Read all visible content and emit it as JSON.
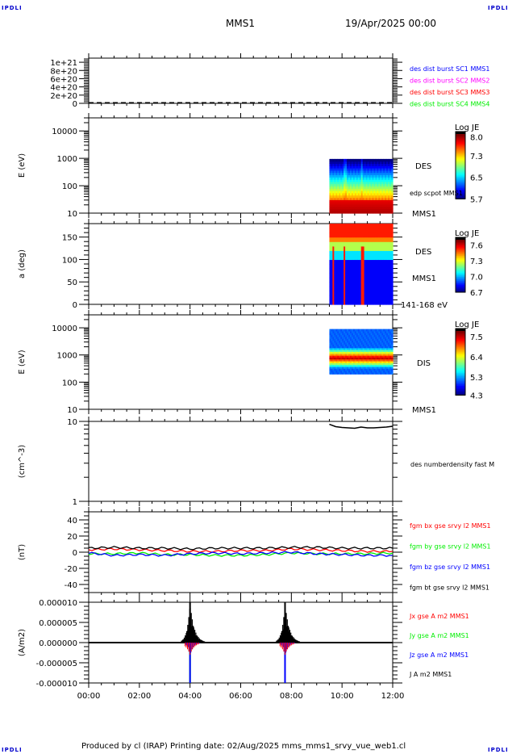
{
  "header": {
    "corner_label": "IPDLI",
    "spacecraft": "MMS1",
    "datetime": "19/Apr/2025 00:00"
  },
  "footer": {
    "text": "Produced by cl (IRAP)   Printing date: 02/Aug/2025   mms_mms1_srvy_vue_web1.cl"
  },
  "colors": {
    "red": "#ff0000",
    "green": "#00ee00",
    "blue": "#0000ff",
    "magenta": "#ff00ff",
    "black": "#000000",
    "corner": "#0000cc"
  },
  "chart_data": [
    {
      "id": "burst-flags",
      "type": "line",
      "ylabel": "",
      "ylim": [
        0,
        1.1e+21
      ],
      "yticks": [
        0,
        2e+20,
        4e+20,
        6e+20,
        8e+20,
        1e+21
      ],
      "ytick_labels": [
        "0",
        "2e+20",
        "4e+20",
        "6e+20",
        "8e+20",
        "1e+21"
      ],
      "series": [
        {
          "name": "des dist burst SC1 MMS1",
          "color": "#0000ff",
          "values": []
        },
        {
          "name": "des dist burst SC2 MMS2",
          "color": "#ff00ff",
          "values": []
        },
        {
          "name": "des dist burst SC3 MMS3",
          "color": "#ff0000",
          "values": []
        },
        {
          "name": "des dist burst SC4 MMS4",
          "color": "#00ee00",
          "values": []
        }
      ],
      "annotations": [
        "dashed zero line"
      ]
    },
    {
      "id": "des-energy-spectrogram",
      "type": "heatmap",
      "ylabel": "E (eV)",
      "yscale": "log",
      "ylim": [
        10,
        30000
      ],
      "ytick_labels": [
        "10",
        "100",
        "1000",
        "10000"
      ],
      "data_time_range": [
        "09:30",
        "12:00"
      ],
      "data_energy_range_eV": [
        10,
        950
      ],
      "description": "Red (high flux) below ~100 eV, fading through yellow/green to blue near 900 eV; brief enhancements near 10:05 and 10:45",
      "colorbar": {
        "label": "Log JE",
        "ticks": [
          "5.7",
          "6.5",
          "7.3",
          "8.0"
        ],
        "range": [
          5.7,
          8.1
        ]
      },
      "side_labels": [
        "DES",
        "edp scpot MMS1",
        "MMS1"
      ]
    },
    {
      "id": "des-pitch-angle",
      "type": "heatmap",
      "ylabel": "a (deg)",
      "ylim": [
        0,
        180
      ],
      "ytick_labels": [
        "0",
        "50",
        "100",
        "150"
      ],
      "data_time_range": [
        "09:30",
        "12:00"
      ],
      "description": "High flux (red/orange) at 140-180 deg, blue at low pitch angles with red/orange vertical streaks near 09:40, 10:05 and 10:45",
      "colorbar": {
        "label": "Log JE",
        "ticks": [
          "6.7",
          "7.0",
          "7.3",
          "7.6"
        ],
        "range": [
          6.7,
          7.7
        ]
      },
      "side_labels": [
        "DES",
        "MMS1",
        "141-168 eV"
      ]
    },
    {
      "id": "dis-energy-spectrogram",
      "type": "heatmap",
      "ylabel": "E (eV)",
      "yscale": "log",
      "ylim": [
        10,
        30000
      ],
      "ytick_labels": [
        "10",
        "100",
        "1000",
        "10000"
      ],
      "data_time_range": [
        "09:30",
        "12:00"
      ],
      "data_energy_range_eV": [
        200,
        9000
      ],
      "description": "Narrow red band near 800 eV surrounded by yellow/green, blue elsewhere",
      "colorbar": {
        "label": "Log JE",
        "ticks": [
          "4.3",
          "5.3",
          "6.4",
          "7.5"
        ],
        "range": [
          4.3,
          7.8
        ]
      },
      "side_labels": [
        "DIS",
        "MMS1"
      ]
    },
    {
      "id": "des-number-density",
      "type": "line",
      "ylabel": "(cm^-3)",
      "yscale": "log",
      "ylim": [
        1,
        10
      ],
      "ytick_labels": [
        "1",
        "10"
      ],
      "x": [
        "09:30",
        "09:45",
        "10:00",
        "10:15",
        "10:30",
        "10:45",
        "11:00",
        "11:15",
        "11:30",
        "11:45",
        "12:00"
      ],
      "series": [
        {
          "name": "des numberdensity fast M",
          "color": "#000000",
          "values": [
            9.2,
            8.6,
            8.4,
            8.3,
            8.2,
            8.5,
            8.3,
            8.3,
            8.4,
            8.5,
            8.7
          ]
        }
      ]
    },
    {
      "id": "fgm-b-field",
      "type": "line",
      "ylabel": "(nT)",
      "ylim": [
        -50,
        50
      ],
      "ytick_labels": [
        "-40",
        "-20",
        "0",
        "20",
        "40"
      ],
      "x": [
        "00:00",
        "01:00",
        "02:00",
        "03:00",
        "04:00",
        "05:00",
        "06:00",
        "07:00",
        "08:00",
        "09:00",
        "10:00",
        "11:00",
        "12:00"
      ],
      "series": [
        {
          "name": "fgm bx gse srvy l2 MMS1",
          "color": "#ff0000",
          "values": [
            3,
            4,
            3,
            2,
            1,
            1,
            2,
            2,
            4,
            3,
            2,
            1,
            1
          ]
        },
        {
          "name": "fgm by gse srvy l2 MMS1",
          "color": "#00ee00",
          "values": [
            -2,
            -2,
            -1,
            -3,
            -3,
            -4,
            -4,
            -3,
            -1,
            -2,
            -2,
            -2,
            -1
          ]
        },
        {
          "name": "fgm bz gse srvy l2 MMS1",
          "color": "#0000ff",
          "values": [
            -1,
            -4,
            -3,
            -4,
            -2,
            -1,
            -2,
            -1,
            0,
            -2,
            -3,
            -4,
            -4
          ]
        },
        {
          "name": "fgm bt gse srvy l2 MMS1",
          "color": "#000000",
          "values": [
            5,
            6,
            5,
            5,
            4,
            5,
            5,
            5,
            6,
            6,
            5,
            5,
            5
          ]
        }
      ]
    },
    {
      "id": "current-density",
      "type": "line",
      "ylabel": "(A/m2)",
      "ylim": [
        -1e-05,
        1e-05
      ],
      "ytick_labels": [
        "-0.000010",
        "-0.000005",
        "0.000000",
        "0.000005",
        "0.000010"
      ],
      "xlabel": "",
      "xtick_labels": [
        "00:00",
        "02:00",
        "04:00",
        "06:00",
        "08:00",
        "10:00",
        "12:00"
      ],
      "xlim_hours": [
        0,
        12
      ],
      "spikes": [
        {
          "time": "04:00",
          "J_peak": 1e-05,
          "Jz_min": -1e-05,
          "Jy_min": -1e-05,
          "Jx_min": -3e-06
        },
        {
          "time": "07:45",
          "J_peak": 1e-05,
          "Jz_min": -1e-05,
          "Jy_min": -4e-06,
          "Jx_min": -3e-06
        }
      ],
      "series": [
        {
          "name": "Jx gse A m2 MMS1",
          "color": "#ff0000"
        },
        {
          "name": "Jy gse A m2 MMS1",
          "color": "#00ee00"
        },
        {
          "name": "Jz gse A m2 MMS1",
          "color": "#0000ff"
        },
        {
          "name": "J A m2 MMS1",
          "color": "#000000"
        }
      ]
    }
  ]
}
